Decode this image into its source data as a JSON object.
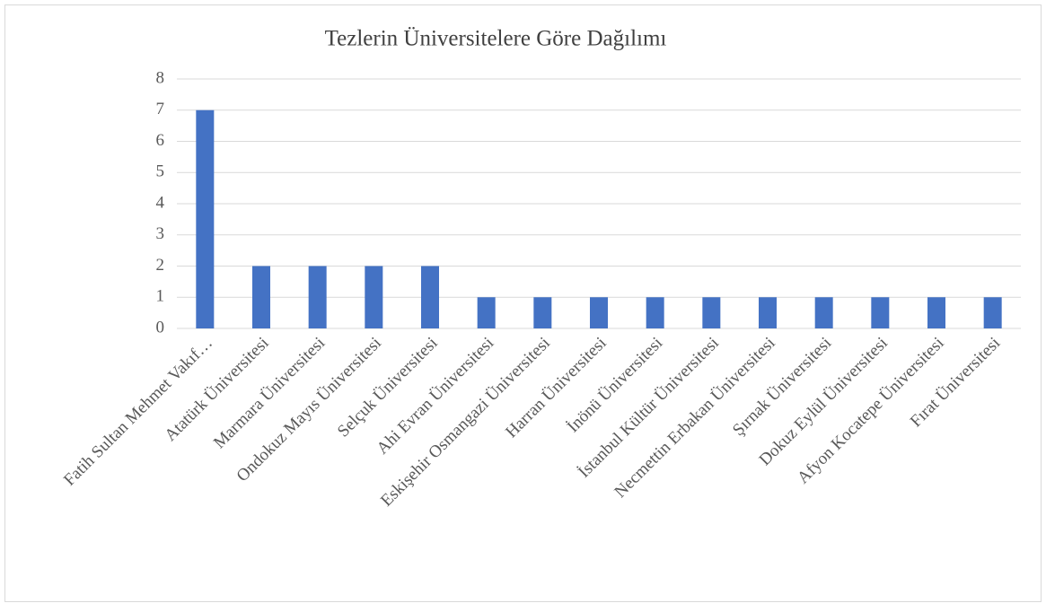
{
  "chart_data": {
    "type": "bar",
    "title": "Tezlerin Üniversitelere Göre Dağılımı",
    "categories": [
      "Fatih Sultan Mehmet Vakıf…",
      "Atatürk Üniversitesi",
      "Marmara Üniversitesi",
      "Ondokuz Mayıs Üniversitesi",
      "Selçuk Üniversitesi",
      "Ahi Evran Üniversitesi",
      "Eskişehir Osmangazi Üniversitesi",
      "Harran Üniversitesi",
      "İnönü Üniversitesi",
      "İstanbul Kültür Üniversitesi",
      "Necmettin Erbakan Üniversitesi",
      "Şırnak Üniversitesi",
      "Dokuz Eylül Üniversitesi",
      "Afyon Kocatepe Üniversitesi",
      "Fırat Üniversitesi"
    ],
    "values": [
      7,
      2,
      2,
      2,
      2,
      1,
      1,
      1,
      1,
      1,
      1,
      1,
      1,
      1,
      1
    ],
    "color": "#4472c4",
    "ylim": [
      0,
      8
    ],
    "yticks": [
      0,
      1,
      2,
      3,
      4,
      5,
      6,
      7,
      8
    ],
    "grid": true
  }
}
